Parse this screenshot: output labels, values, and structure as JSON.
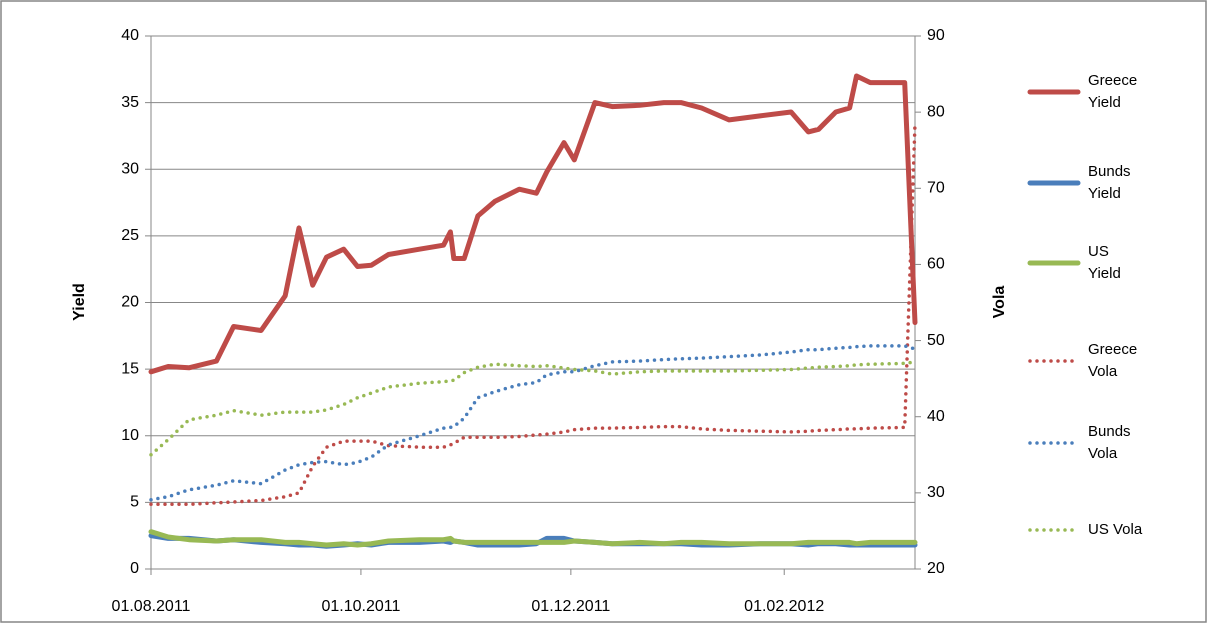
{
  "chart_data": {
    "type": "line",
    "y_label": "Yield",
    "y2_label": "Vola",
    "x": [
      "01.08.2011",
      "06.08.2011",
      "12.08.2011",
      "20.08.2011",
      "25.08.2011",
      "02.09.2011",
      "09.09.2011",
      "13.09.2011",
      "17.09.2011",
      "21.09.2011",
      "26.09.2011",
      "30.09.2011",
      "04.10.2011",
      "09.10.2011",
      "18.10.2011",
      "25.10.2011",
      "27.10.2011",
      "28.10.2011",
      "31.10.2011",
      "04.11.2011",
      "09.11.2011",
      "16.11.2011",
      "21.11.2011",
      "24.11.2011",
      "29.11.2011",
      "02.12.2011",
      "08.12.2011",
      "13.12.2011",
      "21.12.2011",
      "28.12.2011",
      "02.01.2012",
      "08.01.2012",
      "16.01.2012",
      "25.01.2012",
      "03.02.2012",
      "08.02.2012",
      "11.02.2012",
      "16.02.2012",
      "20.02.2012",
      "22.02.2012",
      "26.02.2012",
      "07.03.2012",
      "10.03.2012"
    ],
    "xlim": [
      "01.08.2011",
      "10.03.2012"
    ],
    "xticks": [
      "01.08.2011",
      "01.10.2011",
      "01.12.2011",
      "01.02.2012"
    ],
    "ylim": [
      0,
      40
    ],
    "yticks": [
      0,
      5,
      10,
      15,
      20,
      25,
      30,
      35,
      40
    ],
    "y2lim": [
      20,
      90
    ],
    "y2ticks": [
      20,
      30,
      40,
      50,
      60,
      70,
      80,
      90
    ],
    "grid": true,
    "legend": "right",
    "series": [
      {
        "name": "Greece Yield",
        "color": "#be4b48",
        "style": "solid",
        "values": [
          14.8,
          15.2,
          15.1,
          15.6,
          18.2,
          17.9,
          20.5,
          25.6,
          21.3,
          23.4,
          24.0,
          22.7,
          22.8,
          23.6,
          24.0,
          24.3,
          25.3,
          23.3,
          23.3,
          26.5,
          27.6,
          28.5,
          28.2,
          29.8,
          32.0,
          30.7,
          35.0,
          34.7,
          34.8,
          35.0,
          35.0,
          34.6,
          33.7,
          34.0,
          34.3,
          32.8,
          33.0,
          34.3,
          34.6,
          37.0,
          36.5,
          36.5,
          18.5
        ]
      },
      {
        "name": "Bunds Yield",
        "color": "#4a7ebb",
        "style": "solid",
        "values": [
          2.5,
          2.3,
          2.3,
          2.1,
          2.2,
          2.0,
          1.9,
          1.8,
          1.8,
          1.7,
          1.8,
          1.9,
          1.8,
          2.0,
          2.0,
          2.1,
          2.0,
          2.1,
          2.0,
          1.8,
          1.8,
          1.8,
          1.9,
          2.3,
          2.3,
          2.1,
          2.0,
          1.9,
          1.9,
          1.9,
          1.9,
          1.8,
          1.8,
          1.9,
          1.9,
          1.8,
          1.9,
          1.9,
          1.8,
          1.8,
          1.8,
          1.8,
          1.8
        ]
      },
      {
        "name": "US Yield",
        "color": "#98b954",
        "style": "solid",
        "values": [
          2.8,
          2.4,
          2.2,
          2.1,
          2.2,
          2.2,
          2.0,
          2.0,
          1.9,
          1.8,
          1.9,
          1.8,
          1.9,
          2.1,
          2.2,
          2.2,
          2.3,
          2.1,
          2.0,
          2.0,
          2.0,
          2.0,
          2.0,
          2.0,
          2.0,
          2.1,
          2.0,
          1.9,
          2.0,
          1.9,
          2.0,
          2.0,
          1.9,
          1.9,
          1.9,
          2.0,
          2.0,
          2.0,
          2.0,
          1.9,
          2.0,
          2.0,
          2.0
        ]
      },
      {
        "name": "Greece Vola",
        "color": "#be4b48",
        "style": "dotted",
        "axis": "y2",
        "values": [
          28.5,
          28.5,
          28.5,
          28.7,
          28.8,
          29.0,
          29.5,
          30.0,
          33.5,
          36.0,
          36.8,
          36.8,
          36.8,
          36.2,
          36.0,
          36.0,
          36.3,
          36.5,
          37.3,
          37.3,
          37.3,
          37.4,
          37.6,
          37.7,
          38.0,
          38.3,
          38.5,
          38.5,
          38.6,
          38.7,
          38.7,
          38.4,
          38.2,
          38.1,
          38.0,
          38.1,
          38.2,
          38.3,
          38.4,
          38.4,
          38.5,
          38.6,
          78.5
        ]
      },
      {
        "name": "Bunds Vola",
        "color": "#4a7ebb",
        "style": "dotted",
        "axis": "y2",
        "values": [
          29.1,
          29.5,
          30.4,
          31.0,
          31.6,
          31.2,
          33.0,
          33.7,
          34.0,
          34.1,
          33.7,
          34.0,
          34.7,
          36.3,
          37.5,
          38.5,
          38.6,
          38.7,
          39.8,
          42.5,
          43.3,
          44.2,
          44.5,
          45.5,
          45.9,
          45.9,
          46.7,
          47.2,
          47.3,
          47.5,
          47.6,
          47.7,
          47.9,
          48.1,
          48.5,
          48.8,
          48.8,
          49.0,
          49.1,
          49.2,
          49.3,
          49.3,
          48.9
        ]
      },
      {
        "name": "US Vola",
        "color": "#98b954",
        "style": "dotted",
        "axis": "y2",
        "values": [
          35.0,
          37.0,
          39.6,
          40.2,
          40.8,
          40.2,
          40.6,
          40.6,
          40.6,
          40.9,
          41.6,
          42.5,
          43.1,
          43.9,
          44.4,
          44.6,
          44.7,
          44.8,
          45.8,
          46.5,
          46.9,
          46.7,
          46.6,
          46.7,
          46.4,
          46.2,
          46.0,
          45.6,
          45.9,
          46.0,
          46.0,
          46.0,
          46.0,
          46.1,
          46.2,
          46.4,
          46.5,
          46.6,
          46.7,
          46.8,
          46.9,
          47.0,
          47.2
        ]
      }
    ]
  }
}
